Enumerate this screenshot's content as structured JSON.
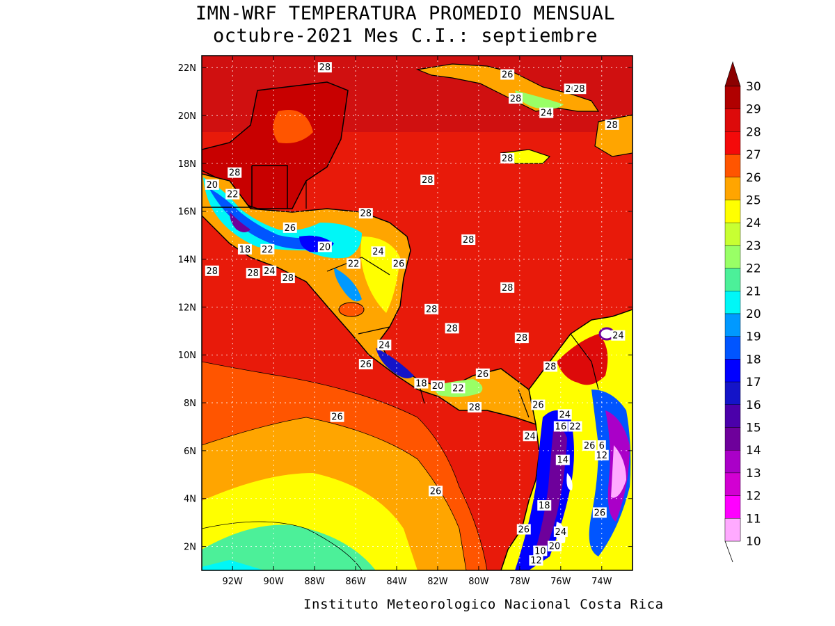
{
  "title": {
    "line1": "IMN-WRF  TEMPERATURA PROMEDIO MENSUAL",
    "line2": "octubre-2021 Mes C.I.: septiembre"
  },
  "footer": "Instituto Meteorologico Nacional Costa Rica",
  "map": {
    "lon_range": [
      -93.5,
      -72.5
    ],
    "lat_range": [
      1,
      22.5
    ],
    "lon_ticks": [
      {
        "value": -92,
        "label": "92W"
      },
      {
        "value": -90,
        "label": "90W"
      },
      {
        "value": -88,
        "label": "88W"
      },
      {
        "value": -86,
        "label": "86W"
      },
      {
        "value": -84,
        "label": "84W"
      },
      {
        "value": -82,
        "label": "82W"
      },
      {
        "value": -80,
        "label": "80W"
      },
      {
        "value": -78,
        "label": "78W"
      },
      {
        "value": -76,
        "label": "76W"
      },
      {
        "value": -74,
        "label": "74W"
      }
    ],
    "lat_ticks": [
      {
        "value": 2,
        "label": "2N"
      },
      {
        "value": 4,
        "label": "4N"
      },
      {
        "value": 6,
        "label": "6N"
      },
      {
        "value": 8,
        "label": "8N"
      },
      {
        "value": 10,
        "label": "10N"
      },
      {
        "value": 12,
        "label": "12N"
      },
      {
        "value": 14,
        "label": "14N"
      },
      {
        "value": 16,
        "label": "16N"
      },
      {
        "value": 18,
        "label": "18N"
      },
      {
        "value": 20,
        "label": "20N"
      },
      {
        "value": 22,
        "label": "22N"
      }
    ],
    "contour_labels": [
      {
        "lon": -87.5,
        "lat": 22.0,
        "text": "28"
      },
      {
        "lon": -78.6,
        "lat": 21.7,
        "text": "26"
      },
      {
        "lon": -78.2,
        "lat": 20.7,
        "text": "28"
      },
      {
        "lon": -75.5,
        "lat": 21.1,
        "text": "26"
      },
      {
        "lon": -75.1,
        "lat": 21.1,
        "text": "28"
      },
      {
        "lon": -76.7,
        "lat": 20.1,
        "text": "24"
      },
      {
        "lon": -73.5,
        "lat": 19.6,
        "text": "28"
      },
      {
        "lon": -78.6,
        "lat": 18.2,
        "text": "28"
      },
      {
        "lon": -82.5,
        "lat": 17.3,
        "text": "28"
      },
      {
        "lon": -93.0,
        "lat": 17.1,
        "text": "20"
      },
      {
        "lon": -91.9,
        "lat": 17.6,
        "text": "28"
      },
      {
        "lon": -92.0,
        "lat": 16.7,
        "text": "22"
      },
      {
        "lon": -85.5,
        "lat": 15.9,
        "text": "28"
      },
      {
        "lon": -89.2,
        "lat": 15.3,
        "text": "26"
      },
      {
        "lon": -80.5,
        "lat": 14.8,
        "text": "28"
      },
      {
        "lon": -91.4,
        "lat": 14.4,
        "text": "18"
      },
      {
        "lon": -90.3,
        "lat": 14.4,
        "text": "22"
      },
      {
        "lon": -87.5,
        "lat": 14.5,
        "text": "20"
      },
      {
        "lon": -84.9,
        "lat": 14.3,
        "text": "24"
      },
      {
        "lon": -86.1,
        "lat": 13.8,
        "text": "22"
      },
      {
        "lon": -83.9,
        "lat": 13.8,
        "text": "26"
      },
      {
        "lon": -93.0,
        "lat": 13.5,
        "text": "28"
      },
      {
        "lon": -91.0,
        "lat": 13.4,
        "text": "28"
      },
      {
        "lon": -90.2,
        "lat": 13.5,
        "text": "24"
      },
      {
        "lon": -89.3,
        "lat": 13.2,
        "text": "28"
      },
      {
        "lon": -78.6,
        "lat": 12.8,
        "text": "28"
      },
      {
        "lon": -82.3,
        "lat": 11.9,
        "text": "28"
      },
      {
        "lon": -81.3,
        "lat": 11.1,
        "text": "28"
      },
      {
        "lon": -77.9,
        "lat": 10.7,
        "text": "28"
      },
      {
        "lon": -73.2,
        "lat": 10.8,
        "text": "24"
      },
      {
        "lon": -84.6,
        "lat": 10.4,
        "text": "24"
      },
      {
        "lon": -85.5,
        "lat": 9.6,
        "text": "26"
      },
      {
        "lon": -76.5,
        "lat": 9.5,
        "text": "28"
      },
      {
        "lon": -79.8,
        "lat": 9.2,
        "text": "26"
      },
      {
        "lon": -82.8,
        "lat": 8.8,
        "text": "18"
      },
      {
        "lon": -82.0,
        "lat": 8.7,
        "text": "20"
      },
      {
        "lon": -81.0,
        "lat": 8.6,
        "text": "22"
      },
      {
        "lon": -80.2,
        "lat": 7.8,
        "text": "28"
      },
      {
        "lon": -77.1,
        "lat": 7.9,
        "text": "26"
      },
      {
        "lon": -75.8,
        "lat": 7.5,
        "text": "24"
      },
      {
        "lon": -76.0,
        "lat": 7.0,
        "text": "16"
      },
      {
        "lon": -75.3,
        "lat": 7.0,
        "text": "22"
      },
      {
        "lon": -77.5,
        "lat": 6.6,
        "text": "24"
      },
      {
        "lon": -74.6,
        "lat": 6.2,
        "text": "26"
      },
      {
        "lon": -74.0,
        "lat": 6.2,
        "text": "6"
      },
      {
        "lon": -74.0,
        "lat": 5.8,
        "text": "12"
      },
      {
        "lon": -75.9,
        "lat": 5.6,
        "text": "14"
      },
      {
        "lon": -86.9,
        "lat": 7.4,
        "text": "26"
      },
      {
        "lon": -82.1,
        "lat": 4.3,
        "text": "26"
      },
      {
        "lon": -76.8,
        "lat": 3.7,
        "text": "18"
      },
      {
        "lon": -74.1,
        "lat": 3.4,
        "text": "26"
      },
      {
        "lon": -77.8,
        "lat": 2.7,
        "text": "26"
      },
      {
        "lon": -76.0,
        "lat": 2.6,
        "text": "24"
      },
      {
        "lon": -76.3,
        "lat": 2.0,
        "text": "20"
      },
      {
        "lon": -77.0,
        "lat": 1.8,
        "text": "10"
      },
      {
        "lon": -77.2,
        "lat": 1.4,
        "text": "12"
      }
    ]
  },
  "legend": {
    "levels": [
      "30",
      "29",
      "28",
      "27",
      "26",
      "25",
      "24",
      "23",
      "22",
      "21",
      "20",
      "19",
      "18",
      "17",
      "16",
      "15",
      "14",
      "13",
      "12",
      "11",
      "10"
    ],
    "colors": [
      "#b00000",
      "#dd0a0a",
      "#f40a0a",
      "#ff5500",
      "#ffa500",
      "#ffff00",
      "#c8ff32",
      "#99ff66",
      "#4cf099",
      "#00f7f7",
      "#0099ff",
      "#0055ff",
      "#0000ff",
      "#1414c8",
      "#4b00aa",
      "#6e009b",
      "#aa00c8",
      "#d200d2",
      "#ff00ff",
      "#ff55ff",
      "#ffaaff"
    ],
    "top_arrow_color": "#8b0000"
  },
  "colors": {
    "ocean_warm": "#e81a0a",
    "land_dark": "#c80000",
    "coastline": "#000000",
    "grid": "#ffffff"
  }
}
